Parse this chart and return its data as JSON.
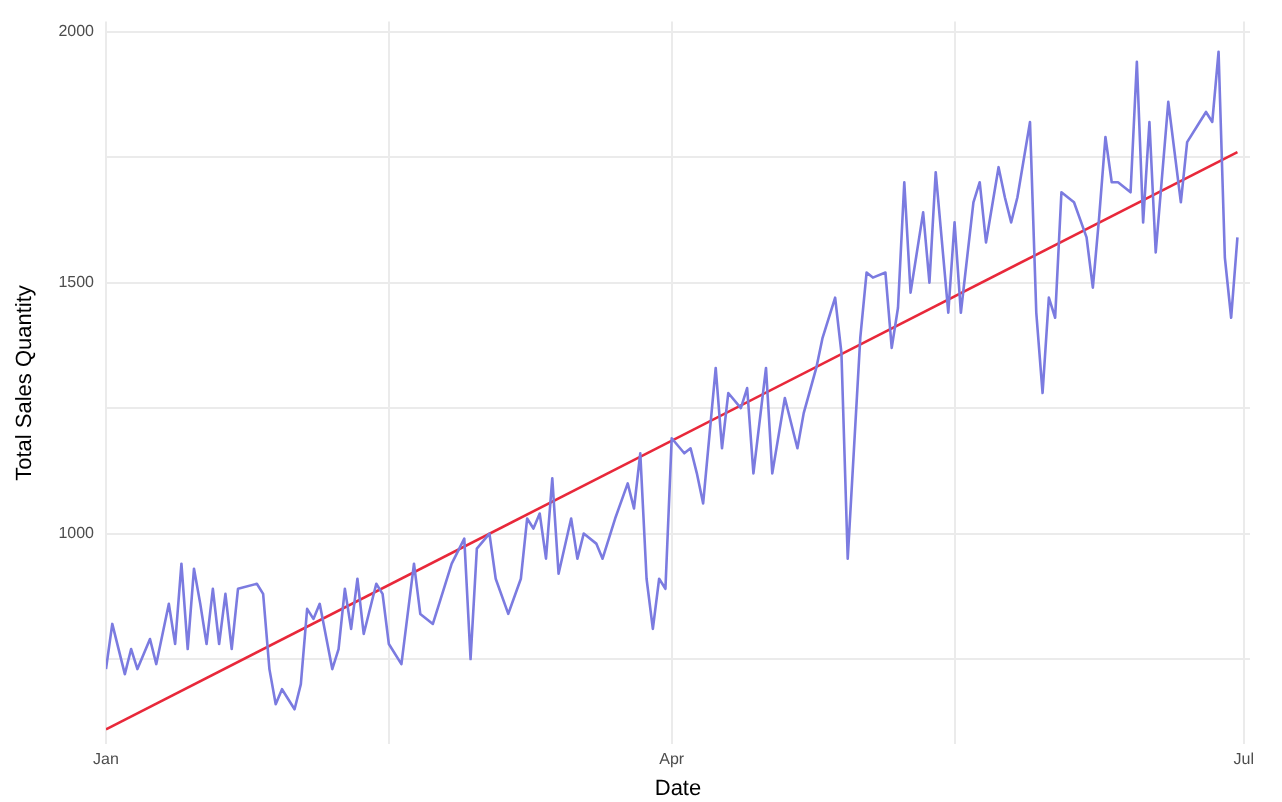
{
  "chart_data": {
    "type": "line",
    "xlabel": "Date",
    "ylabel": "Total Sales Quantity",
    "xlim": [
      "--01-01",
      "--07-02"
    ],
    "xticks": [
      {
        "value": "--01-01",
        "label": "Jan"
      },
      {
        "value": "--02-15",
        "label": null
      },
      {
        "value": "--04-01",
        "label": "Apr"
      },
      {
        "value": "--05-16",
        "label": null
      },
      {
        "value": "--07-01",
        "label": "Jul"
      }
    ],
    "ylim": [
      580,
      2020
    ],
    "yticks": [
      {
        "value": 750,
        "label": null
      },
      1000,
      {
        "value": 1250,
        "label": null
      },
      1500,
      {
        "value": 1750,
        "label": null
      },
      2000
    ],
    "grid": true,
    "legend": false,
    "series": [
      {
        "color": "#7b7be0",
        "x": [
          "--01-01",
          "--01-02",
          "--01-04",
          "--01-05",
          "--01-06",
          "--01-08",
          "--01-09",
          "--01-11",
          "--01-12",
          "--01-13",
          "--01-14",
          "--01-15",
          "--01-16",
          "--01-17",
          "--01-18",
          "--01-19",
          "--01-20",
          "--01-21",
          "--01-22",
          "--01-25",
          "--01-26",
          "--01-27",
          "--01-28",
          "--01-29",
          "--01-31",
          "--02-01",
          "--02-02",
          "--02-03",
          "--02-04",
          "--02-06",
          "--02-07",
          "--02-08",
          "--02-09",
          "--02-10",
          "--02-11",
          "--02-13",
          "--02-14",
          "--02-15",
          "--02-17",
          "--02-19",
          "--02-20",
          "--02-22",
          "--02-25",
          "--02-27",
          "--02-28",
          "--03-01",
          "--03-03",
          "--03-04",
          "--03-06",
          "--03-08",
          "--03-09",
          "--03-10",
          "--03-11",
          "--03-12",
          "--03-13",
          "--03-14",
          "--03-16",
          "--03-17",
          "--03-18",
          "--03-20",
          "--03-21",
          "--03-23",
          "--03-25",
          "--03-26",
          "--03-27",
          "--03-28",
          "--03-29",
          "--03-30",
          "--03-31",
          "--04-01",
          "--04-03",
          "--04-04",
          "--04-05",
          "--04-06",
          "--04-08",
          "--04-09",
          "--04-10",
          "--04-12",
          "--04-13",
          "--04-14",
          "--04-16",
          "--04-17",
          "--04-19",
          "--04-21",
          "--04-22",
          "--04-24",
          "--04-25",
          "--04-27",
          "--04-28",
          "--04-29",
          "--05-01",
          "--05-02",
          "--05-03",
          "--05-05",
          "--05-06",
          "--05-07",
          "--05-08",
          "--05-09",
          "--05-11",
          "--05-12",
          "--05-13",
          "--05-15",
          "--05-16",
          "--05-17",
          "--05-19",
          "--05-20",
          "--05-21",
          "--05-23",
          "--05-24",
          "--05-25",
          "--05-26",
          "--05-28",
          "--05-29",
          "--05-30",
          "--05-31",
          "--06-01",
          "--06-02",
          "--06-04",
          "--06-06",
          "--06-07",
          "--06-08",
          "--06-09",
          "--06-10",
          "--06-11",
          "--06-13",
          "--06-14",
          "--06-15",
          "--06-16",
          "--06-17",
          "--06-19",
          "--06-21",
          "--06-22",
          "--06-24",
          "--06-25",
          "--06-26",
          "--06-27",
          "--06-28",
          "--06-29",
          "--06-30"
        ],
        "values": [
          730,
          820,
          720,
          770,
          730,
          790,
          740,
          860,
          780,
          940,
          770,
          930,
          860,
          780,
          890,
          780,
          880,
          770,
          890,
          900,
          880,
          730,
          660,
          690,
          650,
          700,
          850,
          830,
          860,
          730,
          770,
          890,
          810,
          910,
          800,
          900,
          880,
          780,
          740,
          940,
          840,
          820,
          940,
          990,
          750,
          970,
          1000,
          910,
          840,
          910,
          1030,
          1010,
          1040,
          950,
          1110,
          920,
          1030,
          950,
          1000,
          980,
          950,
          1030,
          1100,
          1050,
          1160,
          910,
          810,
          910,
          890,
          1190,
          1160,
          1170,
          1120,
          1060,
          1330,
          1170,
          1280,
          1250,
          1290,
          1120,
          1330,
          1120,
          1270,
          1170,
          1240,
          1330,
          1390,
          1470,
          1360,
          950,
          1390,
          1520,
          1510,
          1520,
          1370,
          1450,
          1700,
          1480,
          1640,
          1500,
          1720,
          1440,
          1620,
          1440,
          1660,
          1700,
          1580,
          1730,
          1670,
          1620,
          1670,
          1820,
          1440,
          1280,
          1470,
          1430,
          1680,
          1660,
          1590,
          1490,
          1630,
          1790,
          1700,
          1700,
          1680,
          1940,
          1620,
          1820,
          1560,
          1860,
          1660,
          1780,
          1820,
          1840,
          1820,
          1960,
          1550,
          1430,
          1590
        ]
      },
      {
        "type": "line",
        "color": "#e8283a",
        "x": [
          "--01-01",
          "--06-30"
        ],
        "values": [
          610,
          1760
        ]
      }
    ]
  }
}
